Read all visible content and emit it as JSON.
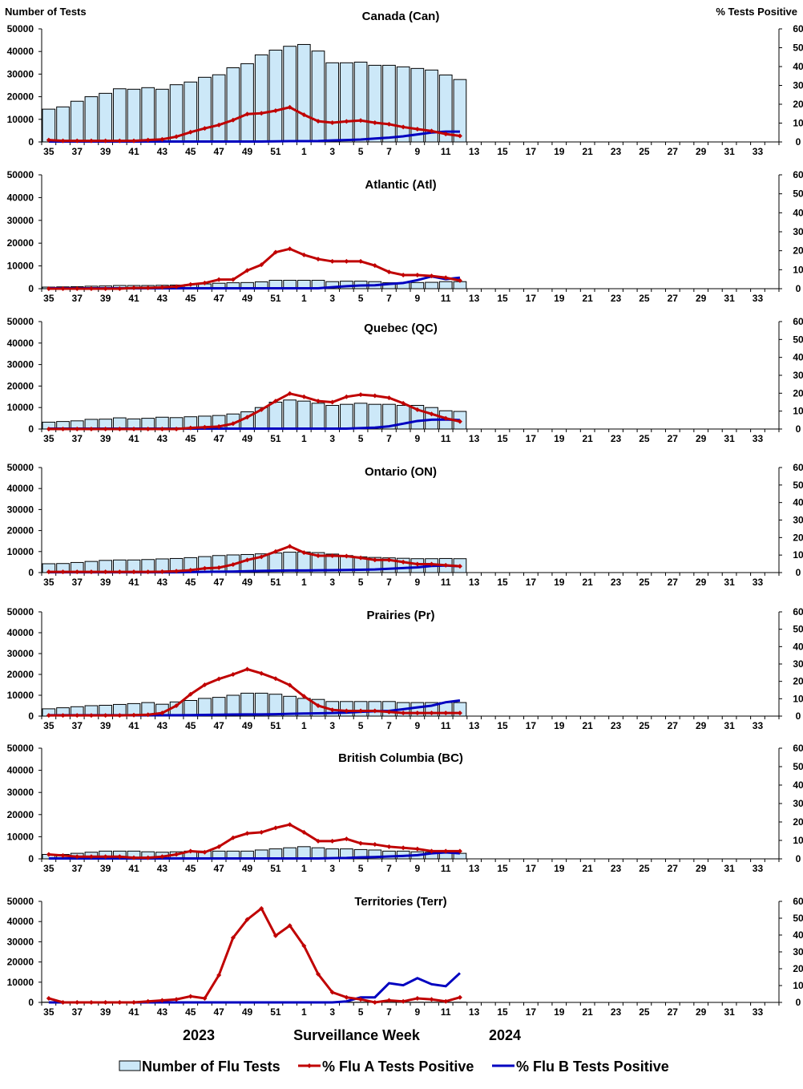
{
  "chart_data": {
    "type": "bar+line",
    "left_axis_title": "Number of Tests",
    "right_axis_title": "% Tests Positive",
    "xlabel": "Surveillance Week",
    "season_labels": [
      "2023",
      "2024"
    ],
    "y_left_lim": [
      0,
      50000
    ],
    "y_left_ticks": [
      0,
      10000,
      20000,
      30000,
      40000,
      50000
    ],
    "y_right_lim": [
      0,
      60
    ],
    "y_right_ticks": [
      0,
      10,
      20,
      30,
      40,
      50,
      60
    ],
    "weeks": [
      35,
      36,
      37,
      38,
      39,
      40,
      41,
      42,
      43,
      44,
      45,
      46,
      47,
      48,
      49,
      50,
      51,
      52,
      1,
      2,
      3,
      4,
      5,
      6,
      7,
      8,
      9,
      10,
      11,
      12,
      13,
      14,
      15,
      16,
      17,
      18,
      19,
      20,
      21,
      22,
      23,
      24,
      25,
      26,
      27,
      28,
      29,
      30,
      31,
      32,
      33,
      34
    ],
    "week_tick_labels": [
      "35",
      "37",
      "39",
      "41",
      "43",
      "45",
      "47",
      "49",
      "51",
      "1",
      "3",
      "5",
      "7",
      "9",
      "11",
      "13",
      "15",
      "17",
      "19",
      "21",
      "23",
      "25",
      "27",
      "29",
      "31",
      "33"
    ],
    "legend": {
      "placement": "bottom",
      "entries": [
        "Number of Flu Tests",
        "% Flu A Tests Positive",
        "% Flu B Tests Positive"
      ]
    },
    "colors": {
      "tests": "#cce8f8",
      "flu_a": "#c00000",
      "flu_b": "#0000c0"
    },
    "panels": [
      {
        "title": "Canada (Can)",
        "tests": [
          14500,
          15500,
          18000,
          20000,
          21500,
          23500,
          23300,
          24000,
          23300,
          25300,
          26500,
          28600,
          29700,
          32800,
          34600,
          38500,
          40600,
          42300,
          43100,
          40200,
          35000,
          35000,
          35300,
          33900,
          33900,
          33200,
          32500,
          31800,
          29600,
          27600
        ],
        "flu_a_pct": [
          1.0,
          0.6,
          0.6,
          0.6,
          0.6,
          0.6,
          0.6,
          1.0,
          1.4,
          2.8,
          5.2,
          7.2,
          9.0,
          11.6,
          14.8,
          15.2,
          16.6,
          18.4,
          14.4,
          11.0,
          10.2,
          10.9,
          11.4,
          10.2,
          9.4,
          7.9,
          6.8,
          5.8,
          4.2,
          3.2
        ],
        "flu_b_pct": [
          0.2,
          0.2,
          0.2,
          0.2,
          0.2,
          0.2,
          0.2,
          0.2,
          0.2,
          0.2,
          0.2,
          0.2,
          0.2,
          0.2,
          0.2,
          0.2,
          0.3,
          0.4,
          0.4,
          0.5,
          0.8,
          1.0,
          1.3,
          1.8,
          2.3,
          3.0,
          4.0,
          5.0,
          5.5,
          5.5
        ]
      },
      {
        "title": "Atlantic (Atl)",
        "tests": [
          700,
          800,
          900,
          1100,
          1200,
          1400,
          1400,
          1400,
          1500,
          1600,
          1800,
          2100,
          2400,
          2600,
          2700,
          3000,
          3700,
          3700,
          3700,
          3700,
          3100,
          3300,
          3300,
          3100,
          2600,
          2600,
          2700,
          2800,
          3100,
          3100
        ],
        "flu_a_pct": [
          0,
          0,
          0,
          0,
          0,
          0,
          0.4,
          0.4,
          0.7,
          1.1,
          2.2,
          3.0,
          4.8,
          4.8,
          9.6,
          12.6,
          19.2,
          21.0,
          17.8,
          15.6,
          14.4,
          14.4,
          14.4,
          12.2,
          8.8,
          7.2,
          7.2,
          6.7,
          5.8,
          4.3
        ],
        "flu_b_pct": [
          0.2,
          0.2,
          0.2,
          0.2,
          0.2,
          0.2,
          0.2,
          0.2,
          0.2,
          0.2,
          0.2,
          0.2,
          0.2,
          0.2,
          0.2,
          0.2,
          0.2,
          0.2,
          0.2,
          0.2,
          0.8,
          1.3,
          1.7,
          1.8,
          2.5,
          3.0,
          4.5,
          6.5,
          5.0,
          5.8
        ]
      },
      {
        "title": "Quebec (QC)",
        "tests": [
          3200,
          3500,
          3800,
          4500,
          4600,
          5200,
          4700,
          5000,
          5500,
          5300,
          5700,
          6000,
          6300,
          7000,
          8000,
          10000,
          12500,
          13500,
          13000,
          12000,
          11000,
          11500,
          12000,
          11500,
          11500,
          11000,
          11000,
          10000,
          8500,
          8200
        ],
        "flu_a_pct": [
          0,
          0,
          0,
          0,
          0,
          0,
          0,
          0,
          0,
          0,
          0.6,
          1.0,
          1.4,
          3.0,
          6.6,
          10.8,
          15.6,
          19.8,
          18.0,
          15.6,
          15.0,
          18.0,
          19.2,
          18.6,
          17.4,
          14.4,
          10.8,
          8.4,
          6.0,
          4.2
        ],
        "flu_b_pct": [
          0.2,
          0.2,
          0.2,
          0.2,
          0.2,
          0.2,
          0.2,
          0.2,
          0.2,
          0.2,
          0.2,
          0.2,
          0.2,
          0.2,
          0.2,
          0.2,
          0.2,
          0.2,
          0.2,
          0.2,
          0.2,
          0.2,
          0.5,
          0.8,
          1.5,
          3.0,
          4.5,
          5.2,
          5.3,
          5.0
        ]
      },
      {
        "title": "Ontario (ON)",
        "tests": [
          4200,
          4300,
          4800,
          5300,
          5800,
          6000,
          6000,
          6200,
          6500,
          6700,
          7100,
          7600,
          8100,
          8400,
          8600,
          8900,
          9300,
          9700,
          9800,
          9500,
          8800,
          8100,
          7500,
          7200,
          7000,
          6800,
          6600,
          6600,
          6700,
          6600
        ],
        "flu_a_pct": [
          0.4,
          0.4,
          0.4,
          0.4,
          0.4,
          0.4,
          0.4,
          0.4,
          0.5,
          0.8,
          1.4,
          2.4,
          2.8,
          4.6,
          7.2,
          9.0,
          12.0,
          15.0,
          11.4,
          9.6,
          9.6,
          9.4,
          8.4,
          7.2,
          7.2,
          6.0,
          4.8,
          4.8,
          4.2,
          3.6
        ],
        "flu_b_pct": [
          0.2,
          0.2,
          0.2,
          0.2,
          0.2,
          0.2,
          0.2,
          0.2,
          0.2,
          0.2,
          0.3,
          0.4,
          0.5,
          0.6,
          0.8,
          1.0,
          1.1,
          1.2,
          1.2,
          1.3,
          1.4,
          1.5,
          1.6,
          1.8,
          2.2,
          2.6,
          3.0,
          3.8,
          4.0,
          3.6
        ]
      },
      {
        "title": "Prairies (Pr)",
        "tests": [
          3500,
          4000,
          4500,
          5000,
          5200,
          5600,
          6000,
          6500,
          5700,
          6800,
          7500,
          8500,
          9000,
          10000,
          11000,
          11000,
          10500,
          9500,
          8500,
          8000,
          7000,
          7000,
          7000,
          7000,
          7000,
          6500,
          6500,
          6500,
          6500,
          6500
        ],
        "flu_a_pct": [
          0.4,
          0.4,
          0.4,
          0.4,
          0.4,
          0.4,
          0.6,
          0.8,
          1.8,
          6.0,
          12.6,
          18.0,
          21.4,
          24.0,
          27.0,
          24.6,
          21.6,
          17.8,
          11.4,
          6.0,
          3.6,
          3.0,
          3.0,
          3.0,
          2.4,
          1.8,
          1.8,
          1.8,
          1.8,
          1.8
        ],
        "flu_b_pct": [
          0.5,
          0.5,
          0.5,
          0.5,
          0.5,
          0.5,
          0.5,
          0.5,
          0.5,
          0.5,
          0.6,
          0.7,
          0.8,
          0.9,
          1.0,
          1.0,
          1.1,
          1.3,
          1.5,
          1.6,
          1.8,
          2.0,
          2.5,
          2.8,
          3.0,
          4.0,
          5.0,
          6.0,
          8.0,
          9.0
        ]
      },
      {
        "title": "British Columbia (BC)",
        "tests": [
          2000,
          2000,
          2500,
          3000,
          3500,
          3500,
          3500,
          3200,
          3000,
          3200,
          3500,
          3500,
          3500,
          3500,
          3500,
          4000,
          4500,
          5000,
          5500,
          5000,
          4500,
          4500,
          4200,
          4000,
          3500,
          3500,
          3200,
          3000,
          3000,
          2500
        ],
        "flu_a_pct": [
          2.4,
          1.8,
          1.2,
          1.2,
          1.2,
          1.2,
          0.6,
          0.6,
          1.2,
          2.4,
          4.2,
          3.6,
          6.6,
          11.4,
          13.8,
          14.4,
          16.8,
          18.6,
          14.4,
          9.6,
          9.6,
          10.8,
          8.4,
          7.8,
          6.6,
          6.0,
          5.4,
          4.2,
          4.2,
          4.2
        ],
        "flu_b_pct": [
          0.2,
          0.2,
          0.2,
          0.2,
          0.2,
          0.2,
          0.2,
          0.2,
          0.2,
          0.2,
          0.2,
          0.2,
          0.2,
          0.2,
          0.2,
          0.2,
          0.2,
          0.2,
          0.2,
          0.2,
          0.4,
          0.5,
          0.8,
          1.0,
          1.3,
          1.6,
          2.0,
          3.0,
          3.5,
          3.0
        ]
      },
      {
        "title": "Territories (Terr)",
        "tests": [
          100,
          100,
          100,
          100,
          100,
          100,
          100,
          100,
          100,
          100,
          100,
          100,
          100,
          100,
          100,
          100,
          100,
          100,
          100,
          100,
          100,
          100,
          100,
          100,
          100,
          100,
          100,
          100,
          100,
          100
        ],
        "flu_a_pct": [
          2.4,
          0,
          0,
          0,
          0,
          0,
          0,
          0.6,
          1.2,
          1.8,
          3.6,
          2.4,
          16.2,
          38.4,
          49.2,
          55.8,
          39.6,
          45.6,
          33.6,
          16.8,
          6.0,
          3.0,
          1.8,
          0,
          1.2,
          0.6,
          2.4,
          1.8,
          0.6,
          3.0
        ],
        "flu_b_pct": [
          0,
          0,
          0,
          0,
          0,
          0,
          0,
          0,
          0,
          0,
          0,
          0,
          0,
          0,
          0,
          0,
          0,
          0,
          0,
          0,
          0,
          0.6,
          3.0,
          3.0,
          11.4,
          10.2,
          14.4,
          10.8,
          9.6,
          17.4
        ]
      }
    ]
  }
}
